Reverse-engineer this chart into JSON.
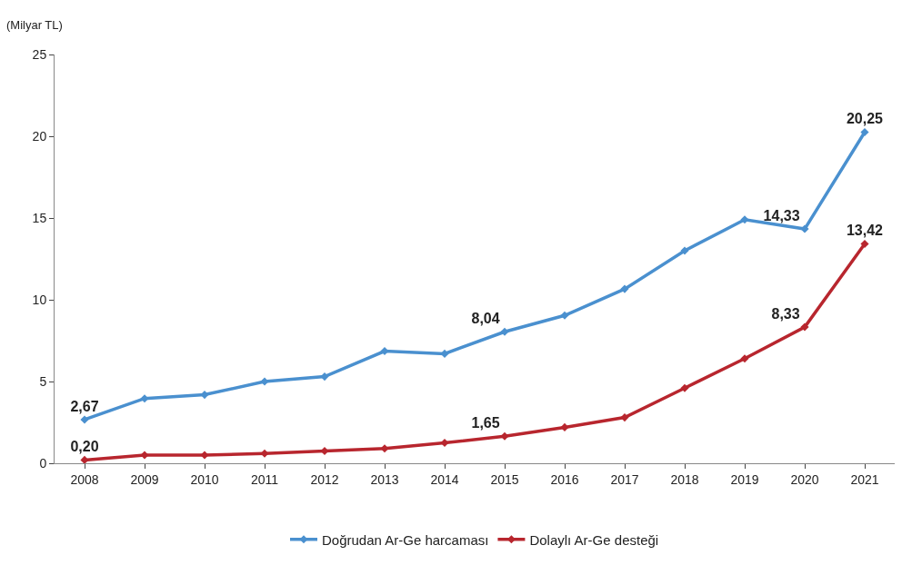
{
  "chart_data": {
    "type": "line",
    "ylabel": "(Milyar TL)",
    "categories": [
      "2008",
      "2009",
      "2010",
      "2011",
      "2012",
      "2013",
      "2014",
      "2015",
      "2016",
      "2017",
      "2018",
      "2019",
      "2020",
      "2021"
    ],
    "series": [
      {
        "name": "Doğrudan Ar-Ge harcaması",
        "color": "#4a90cf",
        "values": [
          2.67,
          3.96,
          4.19,
          5.0,
          5.3,
          6.86,
          6.7,
          8.04,
          9.04,
          10.66,
          13.0,
          14.9,
          14.33,
          20.25
        ],
        "value_labels": [
          "2,67",
          null,
          null,
          null,
          null,
          null,
          null,
          "8,04",
          null,
          null,
          null,
          null,
          "14,33",
          "20,25"
        ]
      },
      {
        "name": "Dolaylı Ar-Ge desteği",
        "color": "#b8262e",
        "values": [
          0.2,
          0.5,
          0.5,
          0.6,
          0.75,
          0.9,
          1.25,
          1.65,
          2.2,
          2.8,
          4.6,
          6.4,
          8.33,
          13.42
        ],
        "value_labels": [
          "0,20",
          null,
          null,
          null,
          null,
          null,
          null,
          "1,65",
          null,
          null,
          null,
          null,
          "8,33",
          "13,42"
        ]
      }
    ],
    "ylim": [
      0,
      25
    ],
    "yticks": [
      0,
      5,
      10,
      15,
      20,
      25
    ],
    "legend": "bottom",
    "marker": "diamond",
    "line_style": "solid"
  }
}
